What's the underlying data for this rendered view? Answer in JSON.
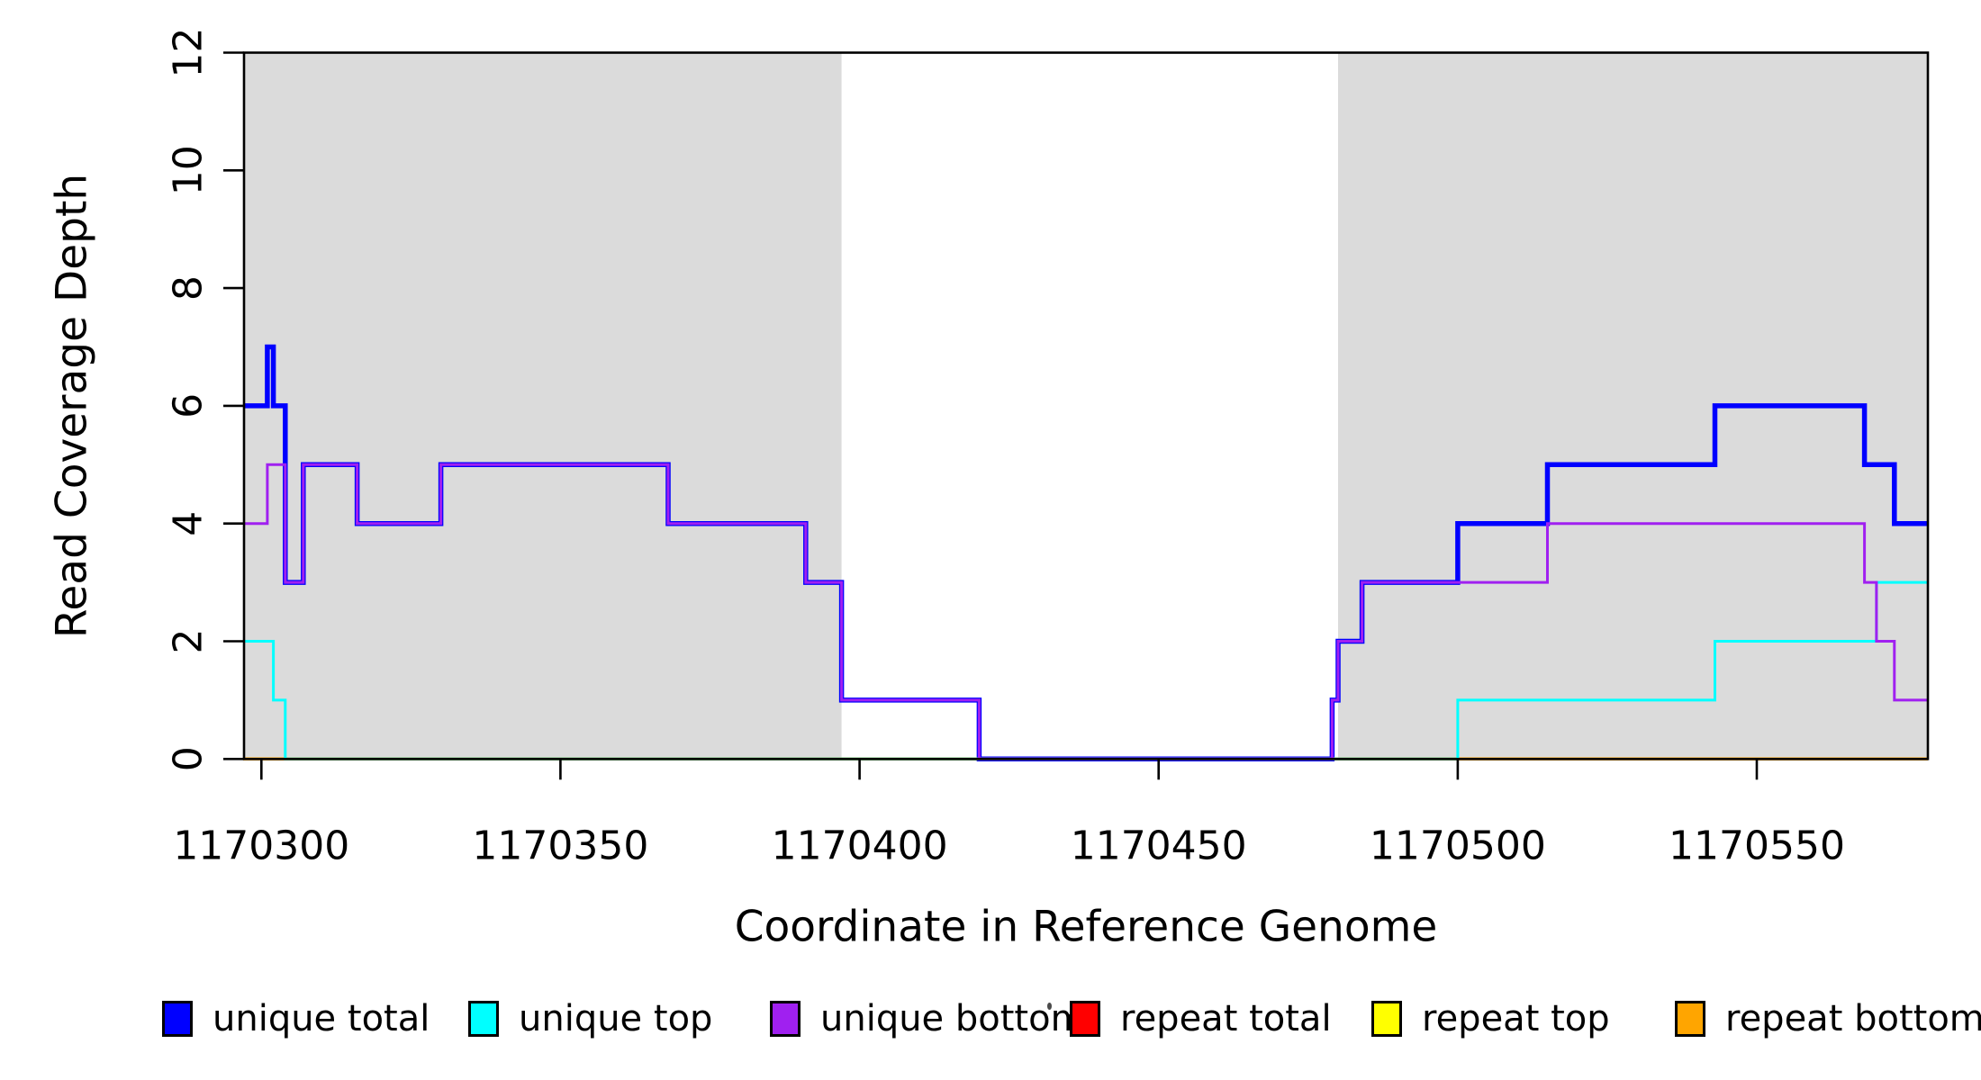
{
  "figure": {
    "background_color": "#FFFFFF",
    "plot_background_color": "#FFFFFF"
  },
  "chart_data": {
    "type": "line",
    "step_interpolation": true,
    "title": "",
    "xlabel": "Coordinate in Reference Genome",
    "ylabel": "Read Coverage Depth",
    "xlim": [
      1170297.1,
      1170578.6
    ],
    "ylim": [
      0,
      12
    ],
    "x_ticks": [
      1170300,
      1170350,
      1170400,
      1170450,
      1170500,
      1170550
    ],
    "y_ticks": [
      0,
      2,
      4,
      6,
      8,
      10,
      12
    ],
    "grid": false,
    "legend_position": "bottom",
    "shaded_region_color": "#DBDBDB",
    "shaded_regions": [
      {
        "x1": 1170297.1,
        "x2": 1170397,
        "note": "left gray band"
      },
      {
        "x1": 1170480,
        "x2": 1170578.6,
        "note": "right gray band"
      }
    ],
    "draw_order": [
      "unique total",
      "repeat total",
      "repeat top",
      "repeat bottom",
      "unique top",
      "unique bottom"
    ],
    "series": [
      {
        "name": "unique total",
        "color": "#0000FF",
        "line_width": 5.5,
        "breakpoints": [
          [
            1170297,
            6
          ],
          [
            1170301,
            7
          ],
          [
            1170302,
            6
          ],
          [
            1170304,
            3
          ],
          [
            1170307,
            5
          ],
          [
            1170316,
            4
          ],
          [
            1170330,
            5
          ],
          [
            1170368,
            4
          ],
          [
            1170391,
            3
          ],
          [
            1170397,
            1
          ],
          [
            1170420,
            0
          ],
          [
            1170479,
            1
          ],
          [
            1170480,
            2
          ],
          [
            1170484,
            3
          ],
          [
            1170500,
            4
          ],
          [
            1170515,
            5
          ],
          [
            1170543,
            6
          ],
          [
            1170568,
            5
          ],
          [
            1170573,
            4
          ]
        ]
      },
      {
        "name": "unique top",
        "color": "#00FFFF",
        "line_width": 3,
        "breakpoints": [
          [
            1170297,
            2
          ],
          [
            1170302,
            1
          ],
          [
            1170304,
            0
          ],
          [
            1170500,
            1
          ],
          [
            1170543,
            2
          ],
          [
            1170570,
            3
          ]
        ]
      },
      {
        "name": "unique bottom",
        "color": "#A020F0",
        "line_width": 3,
        "breakpoints": [
          [
            1170297,
            4
          ],
          [
            1170301,
            5
          ],
          [
            1170304,
            3
          ],
          [
            1170307,
            5
          ],
          [
            1170316,
            4
          ],
          [
            1170330,
            5
          ],
          [
            1170368,
            4
          ],
          [
            1170391,
            3
          ],
          [
            1170397,
            1
          ],
          [
            1170420,
            0
          ],
          [
            1170479,
            1
          ],
          [
            1170480,
            2
          ],
          [
            1170484,
            3
          ],
          [
            1170515,
            4
          ],
          [
            1170568,
            3
          ],
          [
            1170570,
            2
          ],
          [
            1170573,
            1
          ]
        ]
      },
      {
        "name": "repeat total",
        "color": "#FF0000",
        "line_width": 3,
        "breakpoints": [
          [
            1170297,
            0
          ]
        ]
      },
      {
        "name": "repeat top",
        "color": "#FFFF00",
        "line_width": 3,
        "breakpoints": [
          [
            1170297,
            0
          ]
        ]
      },
      {
        "name": "repeat bottom",
        "color": "#FFA500",
        "line_width": 3.5,
        "breakpoints": [
          [
            1170297,
            0
          ]
        ]
      }
    ]
  }
}
